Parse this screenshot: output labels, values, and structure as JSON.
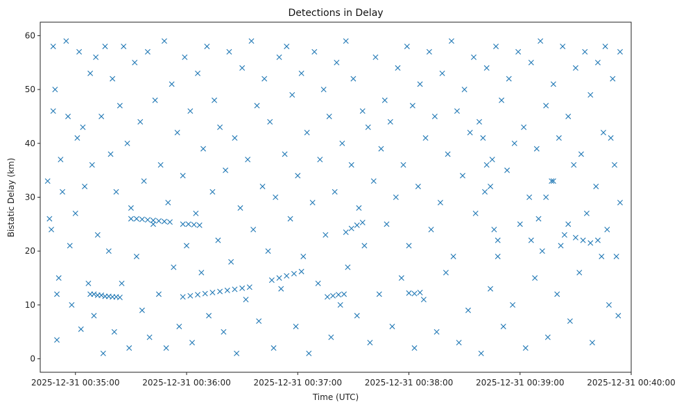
{
  "chart_data": {
    "type": "scatter",
    "title": "Detections in Delay",
    "xlabel": "Time (UTC)",
    "ylabel": "Bistatic Delay (km)",
    "marker": "x",
    "color": "#1f77b4",
    "grid": false,
    "x_ticks": [
      "2025-12-31 00:35:00",
      "2025-12-31 00:36:00",
      "2025-12-31 00:37:00",
      "2025-12-31 00:38:00",
      "2025-12-31 00:39:00",
      "2025-12-31 00:40:00"
    ],
    "y_ticks": [
      0,
      10,
      20,
      30,
      40,
      50,
      60
    ],
    "xlim": [
      "2025-12-31 00:34:41",
      "2025-12-31 00:40:00"
    ],
    "ylim": [
      -2.5,
      62.5
    ],
    "series": [
      {
        "points": [
          [
            "00:34:45",
            33
          ],
          [
            "00:34:46",
            26
          ],
          [
            "00:34:47",
            24
          ],
          [
            "00:34:48",
            58
          ],
          [
            "00:34:48",
            46
          ],
          [
            "00:34:49",
            50
          ],
          [
            "00:34:50",
            12
          ],
          [
            "00:34:50",
            3.5
          ],
          [
            "00:34:51",
            15
          ],
          [
            "00:34:52",
            37
          ],
          [
            "00:34:53",
            31
          ],
          [
            "00:34:55",
            59
          ],
          [
            "00:34:56",
            45
          ],
          [
            "00:34:57",
            21
          ],
          [
            "00:34:58",
            10
          ],
          [
            "00:35:00",
            27
          ],
          [
            "00:35:01",
            41
          ],
          [
            "00:35:02",
            57
          ],
          [
            "00:35:03",
            5.5
          ],
          [
            "00:35:04",
            43
          ],
          [
            "00:35:05",
            32
          ],
          [
            "00:35:07",
            14
          ],
          [
            "00:35:08",
            53
          ],
          [
            "00:35:09",
            36
          ],
          [
            "00:35:10",
            8
          ],
          [
            "00:35:11",
            56
          ],
          [
            "00:35:12",
            23
          ],
          [
            "00:35:14",
            45
          ],
          [
            "00:35:15",
            1
          ],
          [
            "00:35:16",
            58
          ],
          [
            "00:35:18",
            20
          ],
          [
            "00:35:19",
            38
          ],
          [
            "00:35:20",
            52
          ],
          [
            "00:35:21",
            5
          ],
          [
            "00:35:22",
            31
          ],
          [
            "00:35:24",
            47
          ],
          [
            "00:35:25",
            14
          ],
          [
            "00:35:26",
            58
          ],
          [
            "00:35:28",
            40
          ],
          [
            "00:35:29",
            2
          ],
          [
            "00:35:30",
            28
          ],
          [
            "00:35:32",
            55
          ],
          [
            "00:35:33",
            19
          ],
          [
            "00:35:35",
            44
          ],
          [
            "00:35:36",
            9
          ],
          [
            "00:35:37",
            33
          ],
          [
            "00:35:39",
            57
          ],
          [
            "00:35:40",
            4
          ],
          [
            "00:35:42",
            25
          ],
          [
            "00:35:43",
            48
          ],
          [
            "00:35:45",
            12
          ],
          [
            "00:35:46",
            36
          ],
          [
            "00:35:48",
            59
          ],
          [
            "00:35:49",
            2
          ],
          [
            "00:35:50",
            29
          ],
          [
            "00:35:52",
            51
          ],
          [
            "00:35:53",
            17
          ],
          [
            "00:35:55",
            42
          ],
          [
            "00:35:56",
            6
          ],
          [
            "00:35:58",
            34
          ],
          [
            "00:35:59",
            56
          ],
          [
            "00:36:00",
            21
          ],
          [
            "00:36:02",
            46
          ],
          [
            "00:36:03",
            3
          ],
          [
            "00:36:05",
            27
          ],
          [
            "00:36:06",
            53
          ],
          [
            "00:36:08",
            16
          ],
          [
            "00:36:09",
            39
          ],
          [
            "00:36:11",
            58
          ],
          [
            "00:36:12",
            8
          ],
          [
            "00:36:14",
            31
          ],
          [
            "00:36:15",
            48
          ],
          [
            "00:36:17",
            22
          ],
          [
            "00:36:18",
            43
          ],
          [
            "00:36:20",
            5
          ],
          [
            "00:36:21",
            35
          ],
          [
            "00:36:23",
            57
          ],
          [
            "00:36:24",
            18
          ],
          [
            "00:36:26",
            41
          ],
          [
            "00:36:27",
            1
          ],
          [
            "00:36:29",
            28
          ],
          [
            "00:36:30",
            54
          ],
          [
            "00:36:32",
            11
          ],
          [
            "00:36:33",
            37
          ],
          [
            "00:36:35",
            59
          ],
          [
            "00:36:36",
            24
          ],
          [
            "00:36:38",
            47
          ],
          [
            "00:36:39",
            7
          ],
          [
            "00:36:41",
            32
          ],
          [
            "00:36:42",
            52
          ],
          [
            "00:36:44",
            20
          ],
          [
            "00:36:45",
            44
          ],
          [
            "00:36:47",
            2
          ],
          [
            "00:36:48",
            30
          ],
          [
            "00:36:50",
            56
          ],
          [
            "00:36:51",
            13
          ],
          [
            "00:36:53",
            38
          ],
          [
            "00:36:54",
            58
          ],
          [
            "00:36:56",
            26
          ],
          [
            "00:36:57",
            49
          ],
          [
            "00:36:59",
            6
          ],
          [
            "00:37:00",
            34
          ],
          [
            "00:37:02",
            53
          ],
          [
            "00:37:03",
            19
          ],
          [
            "00:37:05",
            42
          ],
          [
            "00:37:06",
            1
          ],
          [
            "00:37:08",
            29
          ],
          [
            "00:37:09",
            57
          ],
          [
            "00:37:11",
            14
          ],
          [
            "00:37:12",
            37
          ],
          [
            "00:37:14",
            50
          ],
          [
            "00:37:15",
            23
          ],
          [
            "00:37:17",
            45
          ],
          [
            "00:37:18",
            4
          ],
          [
            "00:37:20",
            31
          ],
          [
            "00:37:21",
            55
          ],
          [
            "00:37:23",
            10
          ],
          [
            "00:37:24",
            40
          ],
          [
            "00:37:26",
            59
          ],
          [
            "00:37:27",
            17
          ],
          [
            "00:37:29",
            36
          ],
          [
            "00:37:30",
            52
          ],
          [
            "00:37:32",
            8
          ],
          [
            "00:37:33",
            28
          ],
          [
            "00:37:35",
            46
          ],
          [
            "00:37:36",
            21
          ],
          [
            "00:37:38",
            43
          ],
          [
            "00:37:39",
            3
          ],
          [
            "00:37:41",
            33
          ],
          [
            "00:37:42",
            56
          ],
          [
            "00:37:44",
            12
          ],
          [
            "00:37:45",
            39
          ],
          [
            "00:37:47",
            48
          ],
          [
            "00:37:48",
            25
          ],
          [
            "00:37:50",
            44
          ],
          [
            "00:37:51",
            6
          ],
          [
            "00:37:53",
            30
          ],
          [
            "00:37:54",
            54
          ],
          [
            "00:37:56",
            15
          ],
          [
            "00:37:57",
            36
          ],
          [
            "00:37:59",
            58
          ],
          [
            "00:38:00",
            21
          ],
          [
            "00:38:02",
            47
          ],
          [
            "00:38:03",
            2
          ],
          [
            "00:38:05",
            32
          ],
          [
            "00:38:06",
            51
          ],
          [
            "00:38:08",
            11
          ],
          [
            "00:38:09",
            41
          ],
          [
            "00:38:11",
            57
          ],
          [
            "00:38:12",
            24
          ],
          [
            "00:38:14",
            45
          ],
          [
            "00:38:15",
            5
          ],
          [
            "00:38:17",
            29
          ],
          [
            "00:38:18",
            53
          ],
          [
            "00:38:20",
            16
          ],
          [
            "00:38:21",
            38
          ],
          [
            "00:38:23",
            59
          ],
          [
            "00:38:24",
            19
          ],
          [
            "00:38:26",
            46
          ],
          [
            "00:38:27",
            3
          ],
          [
            "00:38:29",
            34
          ],
          [
            "00:38:30",
            50
          ],
          [
            "00:38:32",
            9
          ],
          [
            "00:38:33",
            42
          ],
          [
            "00:38:35",
            56
          ],
          [
            "00:38:36",
            27
          ],
          [
            "00:38:38",
            44
          ],
          [
            "00:38:39",
            1
          ],
          [
            "00:38:41",
            31
          ],
          [
            "00:38:42",
            54
          ],
          [
            "00:38:44",
            13
          ],
          [
            "00:38:45",
            37
          ],
          [
            "00:38:47",
            58
          ],
          [
            "00:38:48",
            22
          ],
          [
            "00:38:50",
            48
          ],
          [
            "00:38:51",
            6
          ],
          [
            "00:38:53",
            35
          ],
          [
            "00:38:54",
            52
          ],
          [
            "00:38:56",
            10
          ],
          [
            "00:38:57",
            40
          ],
          [
            "00:38:59",
            57
          ],
          [
            "00:39:00",
            25
          ],
          [
            "00:39:02",
            43
          ],
          [
            "00:39:03",
            2
          ],
          [
            "00:39:05",
            30
          ],
          [
            "00:39:06",
            55
          ],
          [
            "00:39:08",
            15
          ],
          [
            "00:39:09",
            39
          ],
          [
            "00:39:11",
            59
          ],
          [
            "00:39:12",
            20
          ],
          [
            "00:39:14",
            47
          ],
          [
            "00:39:15",
            4
          ],
          [
            "00:39:17",
            33
          ],
          [
            "00:39:18",
            51
          ],
          [
            "00:39:20",
            12
          ],
          [
            "00:39:21",
            41
          ],
          [
            "00:39:23",
            58
          ],
          [
            "00:39:24",
            23
          ],
          [
            "00:39:26",
            45
          ],
          [
            "00:39:27",
            7
          ],
          [
            "00:39:29",
            36
          ],
          [
            "00:39:30",
            54
          ],
          [
            "00:39:32",
            16
          ],
          [
            "00:39:33",
            38
          ],
          [
            "00:39:35",
            57
          ],
          [
            "00:39:36",
            27
          ],
          [
            "00:39:38",
            49
          ],
          [
            "00:39:39",
            3
          ],
          [
            "00:39:41",
            32
          ],
          [
            "00:39:42",
            55
          ],
          [
            "00:39:44",
            19
          ],
          [
            "00:39:45",
            42
          ],
          [
            "00:39:46",
            58
          ],
          [
            "00:39:47",
            24
          ],
          [
            "00:39:48",
            10
          ],
          [
            "00:39:49",
            41
          ],
          [
            "00:39:50",
            52
          ],
          [
            "00:39:51",
            36
          ],
          [
            "00:39:52",
            19
          ],
          [
            "00:39:53",
            8
          ],
          [
            "00:39:54",
            29
          ],
          [
            "00:39:54",
            57
          ],
          [
            "00:35:08",
            12
          ],
          [
            "00:35:10",
            12
          ],
          [
            "00:35:12",
            11.8
          ],
          [
            "00:35:14",
            11.8
          ],
          [
            "00:35:16",
            11.6
          ],
          [
            "00:35:18",
            11.6
          ],
          [
            "00:35:20",
            11.5
          ],
          [
            "00:35:22",
            11.5
          ],
          [
            "00:35:24",
            11.4
          ],
          [
            "00:35:30",
            26
          ],
          [
            "00:35:33",
            26
          ],
          [
            "00:35:36",
            25.9
          ],
          [
            "00:35:39",
            25.8
          ],
          [
            "00:35:42",
            25.7
          ],
          [
            "00:35:45",
            25.6
          ],
          [
            "00:35:48",
            25.5
          ],
          [
            "00:35:51",
            25.4
          ],
          [
            "00:35:58",
            25
          ],
          [
            "00:36:01",
            25
          ],
          [
            "00:36:04",
            24.9
          ],
          [
            "00:36:07",
            24.8
          ],
          [
            "00:35:58",
            11.5
          ],
          [
            "00:36:02",
            11.7
          ],
          [
            "00:36:06",
            11.9
          ],
          [
            "00:36:10",
            12.1
          ],
          [
            "00:36:14",
            12.3
          ],
          [
            "00:36:18",
            12.5
          ],
          [
            "00:36:22",
            12.7
          ],
          [
            "00:36:26",
            12.9
          ],
          [
            "00:36:30",
            13.1
          ],
          [
            "00:36:34",
            13.3
          ],
          [
            "00:36:46",
            14.6
          ],
          [
            "00:36:50",
            15
          ],
          [
            "00:36:54",
            15.4
          ],
          [
            "00:36:58",
            15.8
          ],
          [
            "00:37:02",
            16.2
          ],
          [
            "00:37:26",
            23.5
          ],
          [
            "00:37:29",
            24.2
          ],
          [
            "00:37:32",
            24.8
          ],
          [
            "00:37:35",
            25.3
          ],
          [
            "00:37:16",
            11.5
          ],
          [
            "00:37:19",
            11.7
          ],
          [
            "00:37:22",
            11.9
          ],
          [
            "00:37:25",
            12.0
          ],
          [
            "00:38:00",
            12.2
          ],
          [
            "00:38:03",
            12.1
          ],
          [
            "00:38:06",
            12.3
          ],
          [
            "00:38:40",
            41
          ],
          [
            "00:38:42",
            36
          ],
          [
            "00:38:44",
            32
          ],
          [
            "00:38:46",
            24
          ],
          [
            "00:38:48",
            19
          ],
          [
            "00:39:06",
            22
          ],
          [
            "00:39:10",
            26
          ],
          [
            "00:39:14",
            30
          ],
          [
            "00:39:18",
            33
          ],
          [
            "00:39:22",
            21
          ],
          [
            "00:39:26",
            25
          ],
          [
            "00:39:30",
            22.5
          ],
          [
            "00:39:34",
            22
          ],
          [
            "00:39:38",
            21.5
          ],
          [
            "00:39:42",
            22
          ]
        ]
      }
    ]
  }
}
